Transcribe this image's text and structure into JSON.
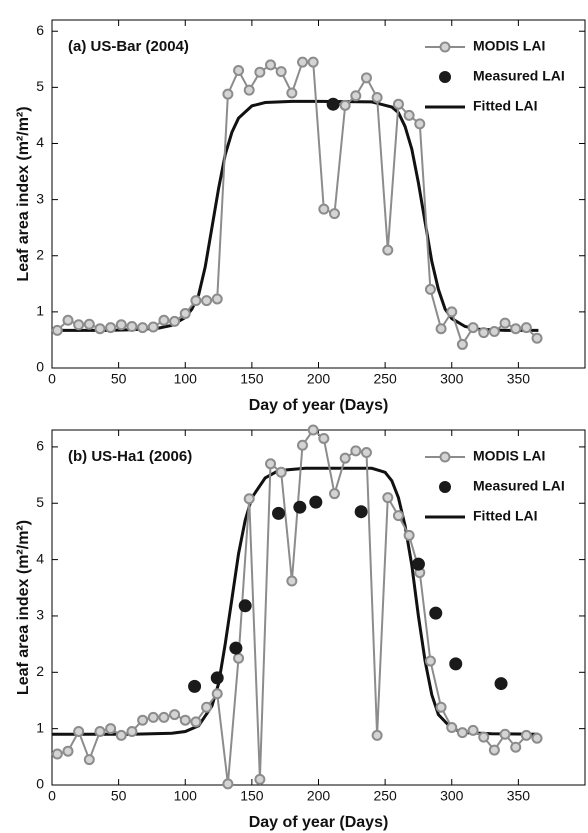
{
  "chart_data": [
    {
      "type": "line",
      "title": "(a) US-Bar (2004)",
      "xlabel": "Day of year (Days)",
      "ylabel": "Leaf area index   (m²/m²)",
      "xlim": [
        0,
        400
      ],
      "ylim": [
        0,
        6.2
      ],
      "xticks": [
        0,
        50,
        100,
        150,
        200,
        250,
        300,
        350
      ],
      "yticks": [
        0,
        1,
        2,
        3,
        4,
        5,
        6
      ],
      "legend": "upper right",
      "series": [
        {
          "name": "MODIS LAI",
          "color": "#8c8c8c",
          "marker_fill": "#d4d4d4",
          "style": "line-marker",
          "x": [
            4,
            12,
            20,
            28,
            36,
            44,
            52,
            60,
            68,
            76,
            84,
            92,
            100,
            108,
            116,
            124,
            132,
            140,
            148,
            156,
            164,
            172,
            180,
            188,
            196,
            204,
            212,
            220,
            228,
            236,
            244,
            252,
            260,
            268,
            276,
            284,
            292,
            300,
            308,
            316,
            324,
            332,
            340,
            348,
            356,
            364
          ],
          "values": [
            0.67,
            0.85,
            0.77,
            0.78,
            0.7,
            0.72,
            0.77,
            0.74,
            0.72,
            0.73,
            0.85,
            0.83,
            0.97,
            1.2,
            1.2,
            1.23,
            4.88,
            5.3,
            4.95,
            5.27,
            5.4,
            5.28,
            4.9,
            5.45,
            5.45,
            2.83,
            2.75,
            4.68,
            4.85,
            5.17,
            4.82,
            2.1,
            4.7,
            4.5,
            4.35,
            1.4,
            0.7,
            1.0,
            0.42,
            0.72,
            0.63,
            0.65,
            0.8,
            0.7,
            0.72,
            0.53
          ]
        },
        {
          "name": "Measured LAI",
          "color": "#1a1a1a",
          "style": "marker",
          "x": [
            211
          ],
          "values": [
            4.7
          ]
        },
        {
          "name": "Fitted LAI",
          "color": "#111111",
          "style": "line",
          "x": [
            0,
            20,
            40,
            60,
            80,
            90,
            100,
            105,
            110,
            115,
            120,
            125,
            130,
            135,
            140,
            150,
            160,
            180,
            200,
            240,
            255,
            260,
            265,
            270,
            275,
            280,
            285,
            290,
            295,
            300,
            310,
            320,
            340,
            365
          ],
          "values": [
            0.67,
            0.67,
            0.67,
            0.68,
            0.71,
            0.76,
            0.9,
            1.05,
            1.3,
            1.8,
            2.5,
            3.2,
            3.8,
            4.2,
            4.45,
            4.67,
            4.73,
            4.75,
            4.75,
            4.74,
            4.65,
            4.55,
            4.3,
            3.9,
            3.3,
            2.6,
            1.9,
            1.4,
            1.05,
            0.88,
            0.74,
            0.69,
            0.67,
            0.67
          ]
        }
      ]
    },
    {
      "type": "line",
      "title": "(b) US-Ha1 (2006)",
      "xlabel": "Day of year (Days)",
      "ylabel": "Leaf area index   (m²/m²)",
      "xlim": [
        0,
        400
      ],
      "ylim": [
        0,
        6.3
      ],
      "xticks": [
        0,
        50,
        100,
        150,
        200,
        250,
        300,
        350
      ],
      "yticks": [
        0,
        1,
        2,
        3,
        4,
        5,
        6
      ],
      "legend": "upper right",
      "series": [
        {
          "name": "MODIS LAI",
          "color": "#8c8c8c",
          "marker_fill": "#d4d4d4",
          "style": "line-marker",
          "x": [
            4,
            12,
            20,
            28,
            36,
            44,
            52,
            60,
            68,
            76,
            84,
            92,
            100,
            108,
            116,
            124,
            132,
            140,
            148,
            156,
            164,
            172,
            180,
            188,
            196,
            204,
            212,
            220,
            228,
            236,
            244,
            252,
            260,
            268,
            276,
            284,
            292,
            300,
            308,
            316,
            324,
            332,
            340,
            348,
            356,
            364
          ],
          "values": [
            0.55,
            0.6,
            0.95,
            0.45,
            0.95,
            1.0,
            0.88,
            0.95,
            1.15,
            1.2,
            1.2,
            1.25,
            1.15,
            1.12,
            1.38,
            1.62,
            0.02,
            2.25,
            5.08,
            0.1,
            5.7,
            5.55,
            3.62,
            6.03,
            6.3,
            6.15,
            5.17,
            5.8,
            5.93,
            5.9,
            0.88,
            5.1,
            4.78,
            4.43,
            3.77,
            2.2,
            1.38,
            1.02,
            0.93,
            0.97,
            0.85,
            0.62,
            0.9,
            0.67,
            0.88,
            0.83
          ]
        },
        {
          "name": "Measured LAI",
          "color": "#1a1a1a",
          "style": "marker",
          "x": [
            107,
            124,
            138,
            145,
            170,
            186,
            198,
            232,
            275,
            288,
            303,
            337
          ],
          "values": [
            1.75,
            1.9,
            2.43,
            3.18,
            4.82,
            4.93,
            5.02,
            4.85,
            3.92,
            3.05,
            2.15,
            1.8
          ]
        },
        {
          "name": "Fitted LAI",
          "color": "#111111",
          "style": "line",
          "x": [
            0,
            60,
            90,
            100,
            110,
            120,
            125,
            130,
            135,
            140,
            145,
            150,
            160,
            170,
            190,
            240,
            250,
            255,
            260,
            265,
            270,
            275,
            280,
            285,
            290,
            300,
            310,
            330,
            365
          ],
          "values": [
            0.9,
            0.9,
            0.92,
            0.95,
            1.05,
            1.4,
            1.8,
            2.5,
            3.3,
            4.1,
            4.7,
            5.1,
            5.45,
            5.58,
            5.62,
            5.62,
            5.55,
            5.4,
            5.1,
            4.6,
            3.9,
            3.0,
            2.2,
            1.6,
            1.25,
            1.0,
            0.93,
            0.91,
            0.9
          ]
        }
      ]
    }
  ]
}
